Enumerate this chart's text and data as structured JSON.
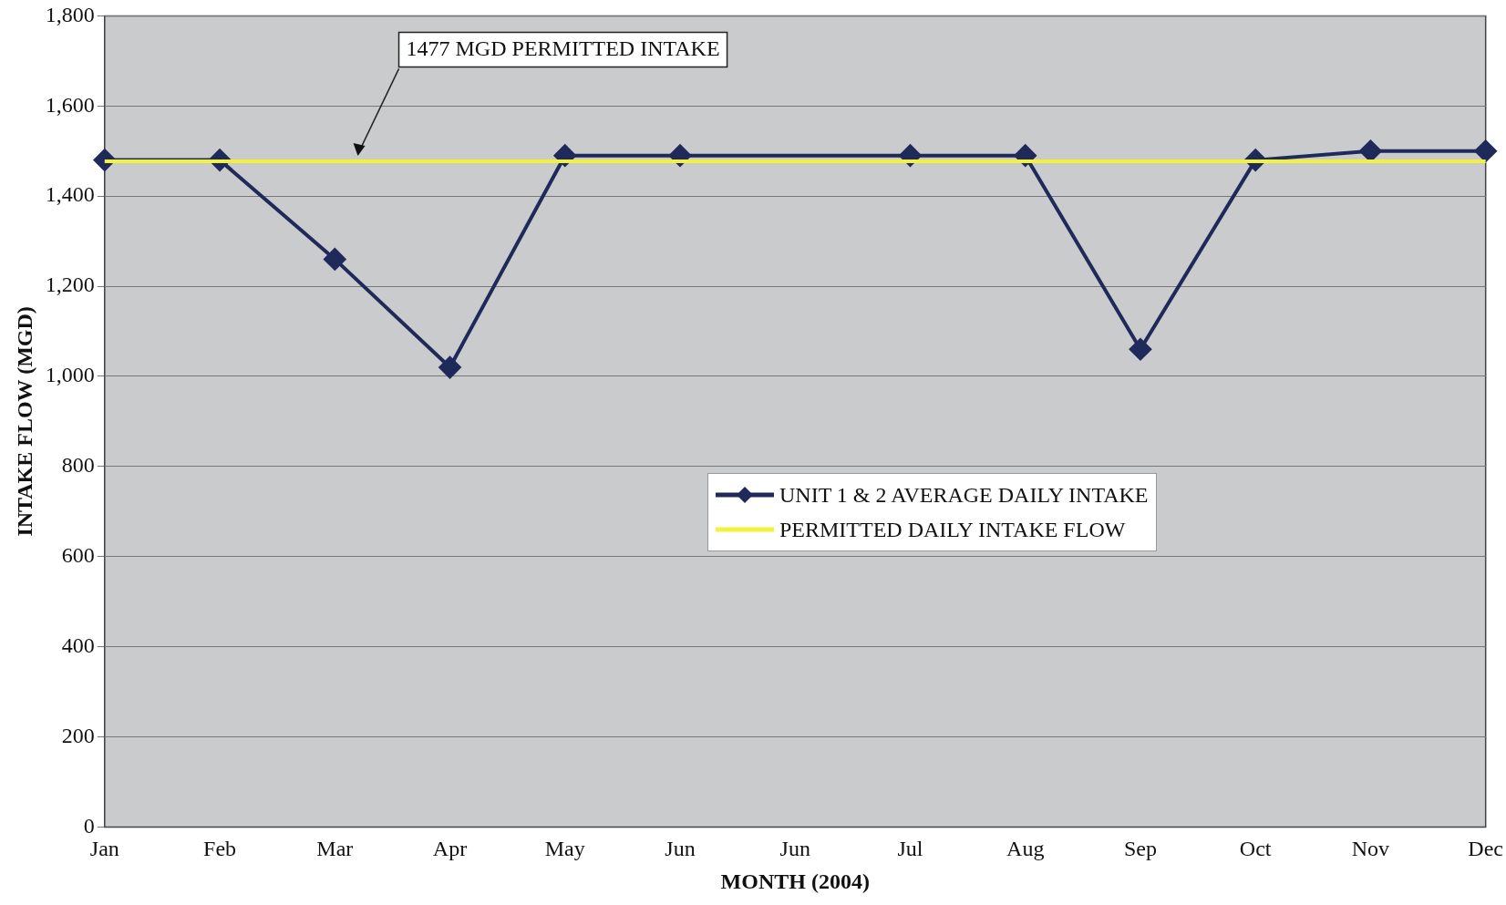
{
  "chart_data": {
    "type": "line",
    "xlabel": "MONTH (2004)",
    "ylabel": "INTAKE FLOW (MGD)",
    "categories": [
      "Jan",
      "Feb",
      "Mar",
      "Apr",
      "May",
      "Jun",
      "Jun",
      "Jul",
      "Aug",
      "Sep",
      "Oct",
      "Nov",
      "Dec"
    ],
    "ylim": [
      0,
      1800
    ],
    "yticks": [
      {
        "value": 0,
        "label": "0"
      },
      {
        "value": 200,
        "label": "200"
      },
      {
        "value": 400,
        "label": "400"
      },
      {
        "value": 600,
        "label": "600"
      },
      {
        "value": 800,
        "label": "800"
      },
      {
        "value": 1000,
        "label": "1,000"
      },
      {
        "value": 1200,
        "label": "1,200"
      },
      {
        "value": 1400,
        "label": "1,400"
      },
      {
        "value": 1600,
        "label": "1,600"
      },
      {
        "value": 1800,
        "label": "1,800"
      }
    ],
    "grid": "y",
    "legend": "center",
    "marker": "diamond",
    "line_style": "solid",
    "series": [
      {
        "name": "UNIT 1 & 2 AVERAGE DAILY  INTAKE",
        "color": "#1f2a5a",
        "values": [
          1480,
          1480,
          1260,
          1020,
          1490,
          1490,
          null,
          1490,
          1490,
          1060,
          1480,
          1500,
          1500
        ]
      },
      {
        "name": "PERMITTED DAILY INTAKE FLOW",
        "color": "#f2f23a",
        "values": [
          1477,
          1477,
          1477,
          1477,
          1477,
          1477,
          1477,
          1477,
          1477,
          1477,
          1477,
          1477,
          1477
        ],
        "marker": "none"
      }
    ],
    "annotations": [
      "1477 MGD PERMITTED INTAKE"
    ]
  }
}
